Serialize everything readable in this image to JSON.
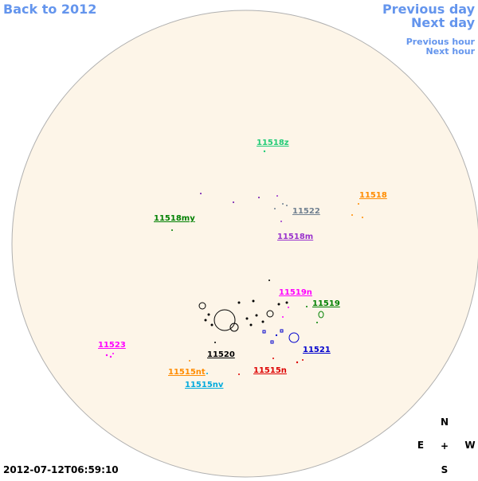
{
  "nav": {
    "back": "Back to 2012",
    "previous_day": "Previous day",
    "next_day": "Next day",
    "previous_hour": "Previous hour",
    "next_hour": "Next hour"
  },
  "regions": [
    {
      "label": "11518z"
    },
    {
      "label": "11518"
    },
    {
      "label": "11518my"
    },
    {
      "label": "11522"
    },
    {
      "label": "11518m"
    },
    {
      "label": "11519n"
    },
    {
      "label": "11519"
    },
    {
      "label": "11523"
    },
    {
      "label": "11520"
    },
    {
      "label": "11521"
    },
    {
      "label": "11515nt"
    },
    {
      "label": "11515n"
    },
    {
      "label": "11515nv"
    }
  ],
  "timestamp": "2012-07-12T06:59:10",
  "compass": {
    "north": "N",
    "east": "E",
    "center": "+",
    "west": "W",
    "south": "S"
  }
}
